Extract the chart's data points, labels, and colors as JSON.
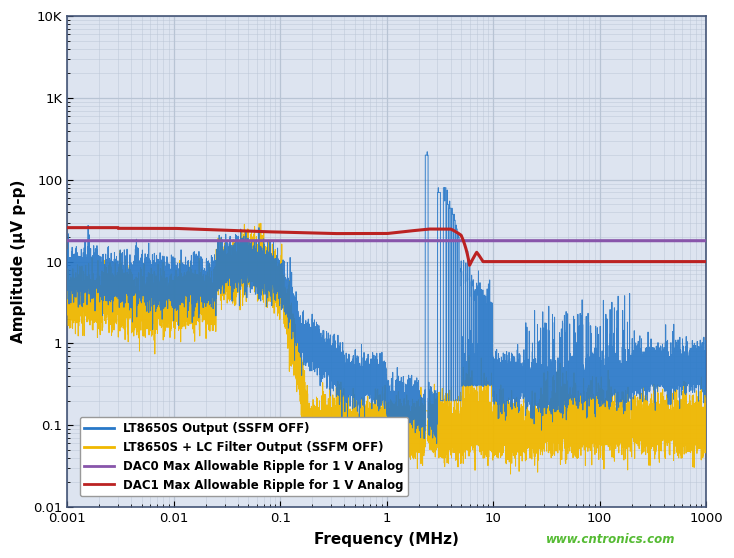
{
  "xlabel": "Frequency (MHz)",
  "ylabel": "Amplitude (μV p-p)",
  "xlim": [
    0.001,
    1000
  ],
  "ylim": [
    0.01,
    10000
  ],
  "grid_color": "#b8c4d4",
  "bg_color": "#ffffff",
  "plot_bg_color": "#dde4f0",
  "legend_entries": [
    {
      "label": "LT8650S Output (SSFM OFF)",
      "color": "#2878c8"
    },
    {
      "label": "LT8650S + LC Filter Output (SSFM OFF)",
      "color": "#f0b800"
    },
    {
      "label": "DAC0 Max Allowable Ripple for 1 V Analog",
      "color": "#8855aa"
    },
    {
      "label": "DAC1 Max Allowable Ripple for 1 V Analog",
      "color": "#bb2222"
    }
  ],
  "watermark": "www.cntronics.com",
  "watermark_color": "#55bb33"
}
